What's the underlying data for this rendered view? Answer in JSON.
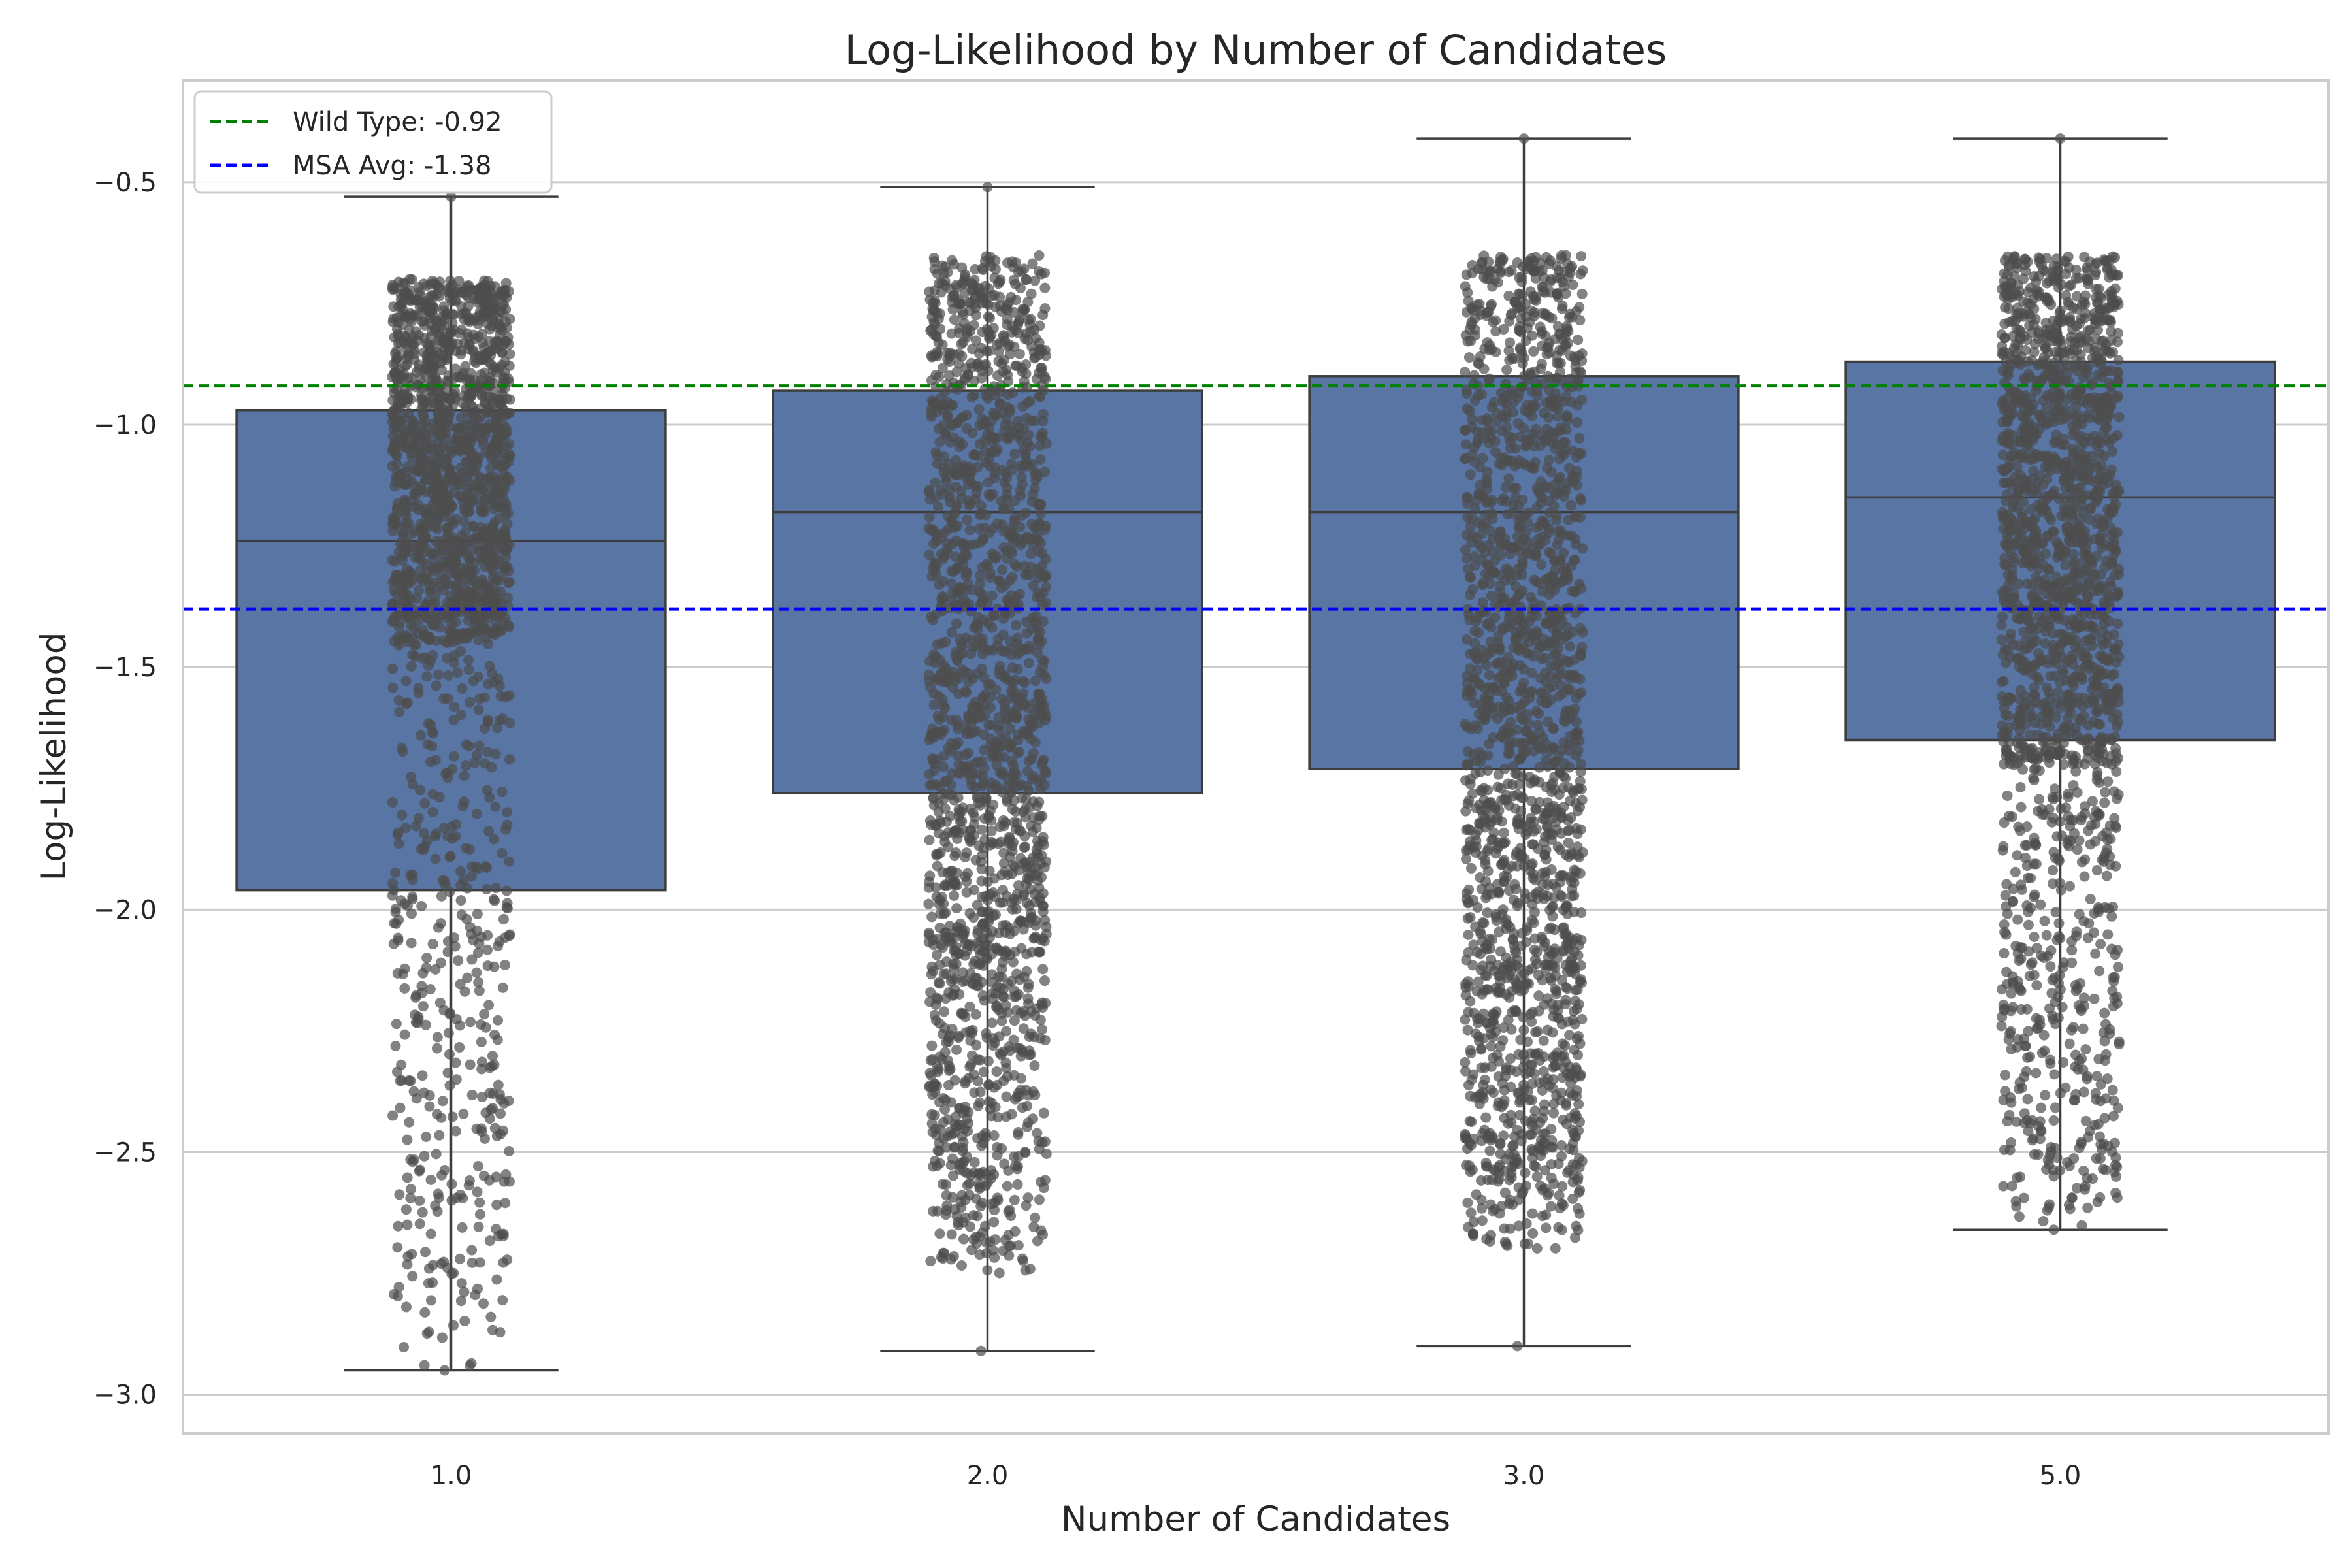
{
  "chart_data": {
    "type": "box",
    "title": "Log-Likelihood by Number of Candidates",
    "xlabel": "Number of Candidates",
    "ylabel": "Log-Likelihood",
    "categories": [
      "1.0",
      "2.0",
      "3.0",
      "5.0"
    ],
    "ylim": [
      -3.08,
      -0.29
    ],
    "yticks": [
      -3.0,
      -2.5,
      -2.0,
      -1.5,
      -1.0,
      -0.5
    ],
    "ytick_labels": [
      "−3.0",
      "−2.5",
      "−2.0",
      "−1.5",
      "−1.0",
      "−0.5"
    ],
    "grid": true,
    "box_color": "#5975a4",
    "box_edge_color": "#3d3d3d",
    "point_color": "#4d4d4d",
    "boxes": [
      {
        "category": "1.0",
        "whisker_low": -2.95,
        "q1": -1.96,
        "median": -1.24,
        "q3": -0.97,
        "whisker_high": -0.53,
        "points_dense_range": [
          -1.45,
          -0.7
        ],
        "points_sparse_range": [
          -2.95,
          -1.45
        ]
      },
      {
        "category": "2.0",
        "whisker_low": -2.91,
        "q1": -1.76,
        "median": -1.18,
        "q3": -0.93,
        "whisker_high": -0.51,
        "points_dense_range": [
          -2.1,
          -0.65
        ],
        "points_sparse_range": [
          -2.75,
          -2.1
        ]
      },
      {
        "category": "3.0",
        "whisker_low": -2.9,
        "q1": -1.71,
        "median": -1.18,
        "q3": -0.9,
        "whisker_high": -0.41,
        "points_dense_range": [
          -2.15,
          -0.65
        ],
        "points_sparse_range": [
          -2.7,
          -2.15
        ]
      },
      {
        "category": "5.0",
        "whisker_low": -2.66,
        "q1": -1.65,
        "median": -1.15,
        "q3": -0.87,
        "whisker_high": -0.41,
        "points_dense_range": [
          -1.7,
          -0.65
        ],
        "points_sparse_range": [
          -2.66,
          -1.7
        ]
      }
    ],
    "reference_lines": [
      {
        "label": "Wild Type: -0.92",
        "value": -0.92,
        "color": "#008000",
        "style": "dashed"
      },
      {
        "label": "MSA Avg: -1.38",
        "value": -1.38,
        "color": "#0000ff",
        "style": "dashed"
      }
    ],
    "legend_position": "top-left"
  }
}
